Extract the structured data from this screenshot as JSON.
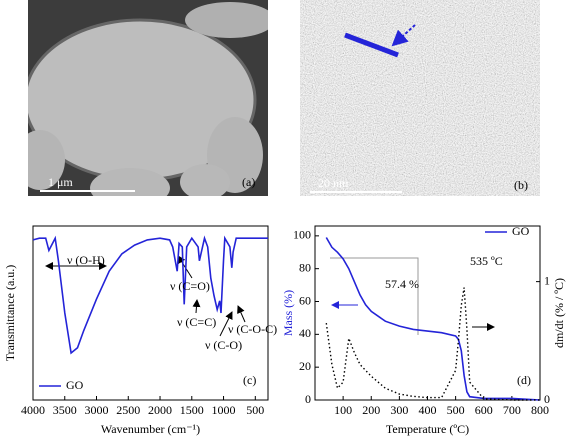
{
  "images": [
    {
      "scale_bar": "1 μm",
      "label": "(a)"
    },
    {
      "scale_bar": "20 nm",
      "label": "(b)"
    }
  ],
  "chart_data": [
    {
      "type": "line",
      "panel_label": "(c)",
      "x_label": "Wavenumber (cm⁻¹)",
      "y_label": "Transmittance (a.u.)",
      "x": [
        4000,
        3900,
        3800,
        3750,
        3650,
        3600,
        3500,
        3400,
        3300,
        3200,
        3000,
        2800,
        2600,
        2400,
        2200,
        2000,
        1850,
        1800,
        1730,
        1700,
        1650,
        1620,
        1580,
        1500,
        1400,
        1380,
        1300,
        1250,
        1200,
        1150,
        1100,
        1060,
        1040,
        1000,
        980,
        900,
        870,
        850,
        800,
        600,
        300
      ],
      "xlim": [
        4000,
        300
      ],
      "xticks": [
        4000,
        3500,
        3000,
        2500,
        2000,
        1500,
        1000,
        500
      ],
      "ylim": [
        0,
        100
      ],
      "series": [
        {
          "name": "GO",
          "color": "#2424d8",
          "values": [
            92,
            93,
            93,
            86,
            93,
            80,
            50,
            27,
            30,
            40,
            58,
            74,
            84,
            89,
            92,
            93,
            92,
            88,
            74,
            90,
            88,
            55,
            88,
            93,
            88,
            80,
            93,
            88,
            70,
            60,
            52,
            57,
            50,
            80,
            93,
            88,
            76,
            85,
            93,
            93,
            93
          ]
        }
      ],
      "annotations": [
        "ν (O-H)",
        "ν (C=O)",
        "ν (C=C)",
        "ν (C-O)",
        "ν (C-O-C)"
      ],
      "legend": "bottom-left"
    },
    {
      "type": "line",
      "panel_label": "(d)",
      "x_label": "Temperature (ºC)",
      "y_label": "Mass (%)",
      "y2_label": "dm/dt (% / ºC)",
      "x": [
        40,
        60,
        80,
        100,
        120,
        140,
        160,
        180,
        200,
        250,
        300,
        350,
        400,
        450,
        500,
        510,
        520,
        530,
        540,
        550,
        600,
        700,
        800
      ],
      "xlim": [
        0,
        800
      ],
      "xticks": [
        100,
        200,
        300,
        400,
        500,
        600,
        700,
        800
      ],
      "ylim": [
        0,
        106
      ],
      "yticks": [
        0,
        20,
        40,
        60,
        80,
        100
      ],
      "y2lim": [
        0,
        1.47
      ],
      "y2ticks": [
        0,
        1
      ],
      "series": [
        {
          "name": "GO",
          "color": "#2424d8",
          "values": [
            99,
            93,
            90,
            86,
            80,
            72,
            64,
            58,
            54,
            48,
            45,
            43,
            42,
            41,
            39,
            37,
            30,
            15,
            5,
            2,
            1,
            1,
            0
          ]
        },
        {
          "color": "#000000",
          "axis": "y2",
          "dash": true,
          "values": [
            0.65,
            0.3,
            0.1,
            0.15,
            0.52,
            0.4,
            0.3,
            0.25,
            0.2,
            0.1,
            0.05,
            0.03,
            0.02,
            0.02,
            0.25,
            0.5,
            0.8,
            0.95,
            0.6,
            0.15,
            0.01,
            0,
            0
          ]
        }
      ],
      "annotations": [
        "57.4 %",
        "535 ºC"
      ],
      "legend": "top-right"
    }
  ]
}
